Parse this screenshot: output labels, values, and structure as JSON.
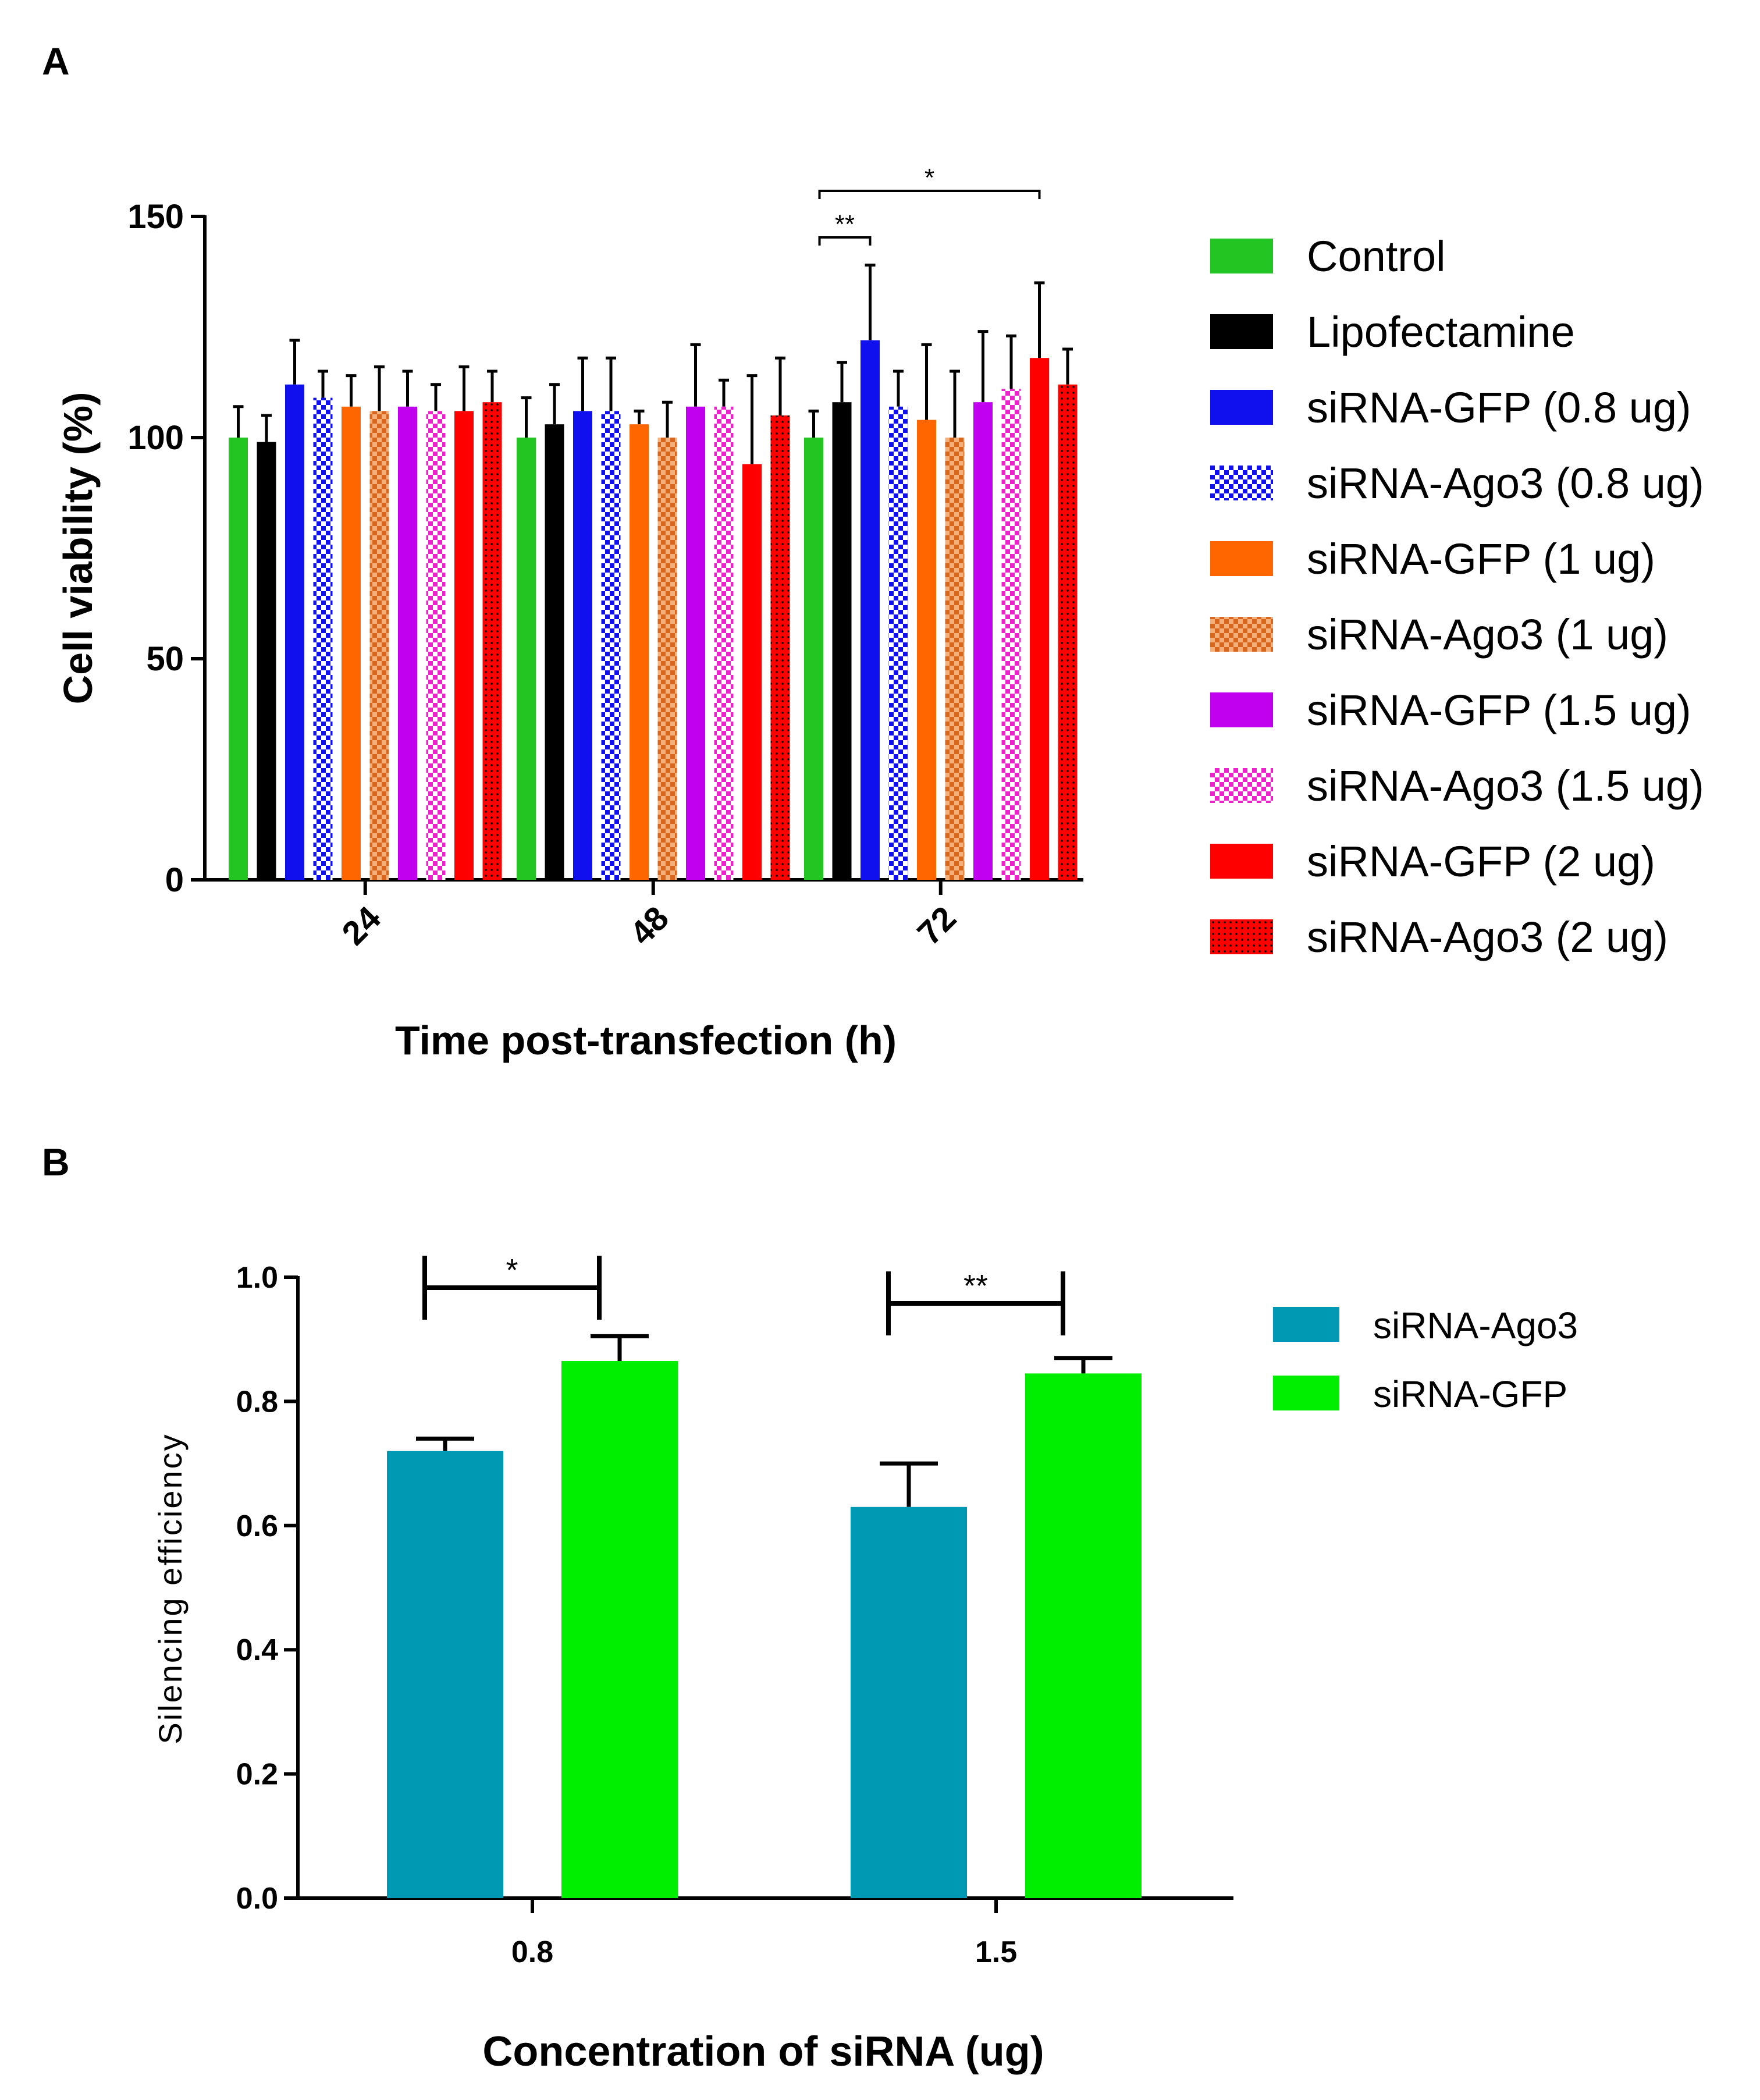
{
  "figure": {
    "panel_a_label": "A",
    "panel_b_label": "B"
  },
  "chart_data": [
    {
      "panel": "A",
      "type": "bar",
      "title": "",
      "xlabel": "Time post-transfection (h)",
      "ylabel": "Cell viability (%)",
      "ylim": [
        0,
        150
      ],
      "yticks": [
        0,
        50,
        100,
        150
      ],
      "ytick_labels": [
        "0",
        "50",
        "100",
        "150"
      ],
      "categories": [
        "24",
        "48",
        "72"
      ],
      "legend_position": "right",
      "series": [
        {
          "name": "Control",
          "color": "#22c522",
          "pattern": "solid",
          "values": [
            100,
            100,
            100
          ],
          "errors": [
            7,
            9,
            6
          ]
        },
        {
          "name": "Lipofectamine",
          "color": "#000000",
          "pattern": "solid",
          "values": [
            99,
            103,
            108
          ],
          "errors": [
            6,
            9,
            9
          ]
        },
        {
          "name": "siRNA-GFP (0.8 ug)",
          "color": "#1010ee",
          "pattern": "solid",
          "values": [
            112,
            106,
            122
          ],
          "errors": [
            10,
            12,
            17
          ]
        },
        {
          "name": "siRNA-Ago3 (0.8 ug)",
          "color": "#1010ee",
          "pattern": "checker",
          "values": [
            109,
            106,
            107
          ],
          "errors": [
            6,
            12,
            8
          ]
        },
        {
          "name": "siRNA-GFP (1 ug)",
          "color": "#ff6600",
          "pattern": "solid",
          "values": [
            107,
            103,
            104
          ],
          "errors": [
            7,
            3,
            17
          ]
        },
        {
          "name": "siRNA-Ago3 (1 ug)",
          "color": "#e07020",
          "pattern": "checker",
          "values": [
            106,
            100,
            100
          ],
          "errors": [
            10,
            8,
            15
          ]
        },
        {
          "name": "siRNA-GFP (1.5 ug)",
          "color": "#c000ee",
          "pattern": "solid",
          "values": [
            107,
            107,
            108
          ],
          "errors": [
            8,
            14,
            16
          ]
        },
        {
          "name": "siRNA-Ago3 (1.5 ug)",
          "color": "#ee22cc",
          "pattern": "checker",
          "values": [
            106,
            107,
            111
          ],
          "errors": [
            6,
            6,
            12
          ]
        },
        {
          "name": "siRNA-GFP (2 ug)",
          "color": "#ff0000",
          "pattern": "solid",
          "values": [
            106,
            94,
            118
          ],
          "errors": [
            10,
            20,
            17
          ]
        },
        {
          "name": "siRNA-Ago3 (2 ug)",
          "color": "#ff0000",
          "pattern": "dots",
          "values": [
            108,
            105,
            112
          ],
          "errors": [
            7,
            13,
            8
          ]
        }
      ],
      "annotations": [
        {
          "text": "**",
          "category": "72",
          "from_series": 0,
          "to_series": 2
        },
        {
          "text": "*",
          "category": "72",
          "from_series": 0,
          "to_series": 8
        }
      ]
    },
    {
      "panel": "B",
      "type": "bar",
      "title": "",
      "xlabel": "Concentration of siRNA (ug)",
      "ylabel": "Silencing efficiency",
      "ylim": [
        0,
        1.0
      ],
      "yticks": [
        0,
        0.2,
        0.4,
        0.6,
        0.8,
        1.0
      ],
      "ytick_labels": [
        "0.0",
        "0.2",
        "0.4",
        "0.6",
        "0.8",
        "1.0"
      ],
      "categories": [
        "0.8",
        "1.5"
      ],
      "legend_position": "top-right",
      "series": [
        {
          "name": "siRNA-Ago3",
          "color": "#0099b3",
          "values": [
            0.72,
            0.63
          ],
          "errors": [
            0.02,
            0.07
          ]
        },
        {
          "name": "siRNA-GFP",
          "color": "#00ee00",
          "values": [
            0.865,
            0.845
          ],
          "errors": [
            0.04,
            0.025
          ]
        }
      ],
      "annotations": [
        {
          "text": "*",
          "category": "0.8"
        },
        {
          "text": "**",
          "category": "1.5"
        }
      ]
    }
  ]
}
